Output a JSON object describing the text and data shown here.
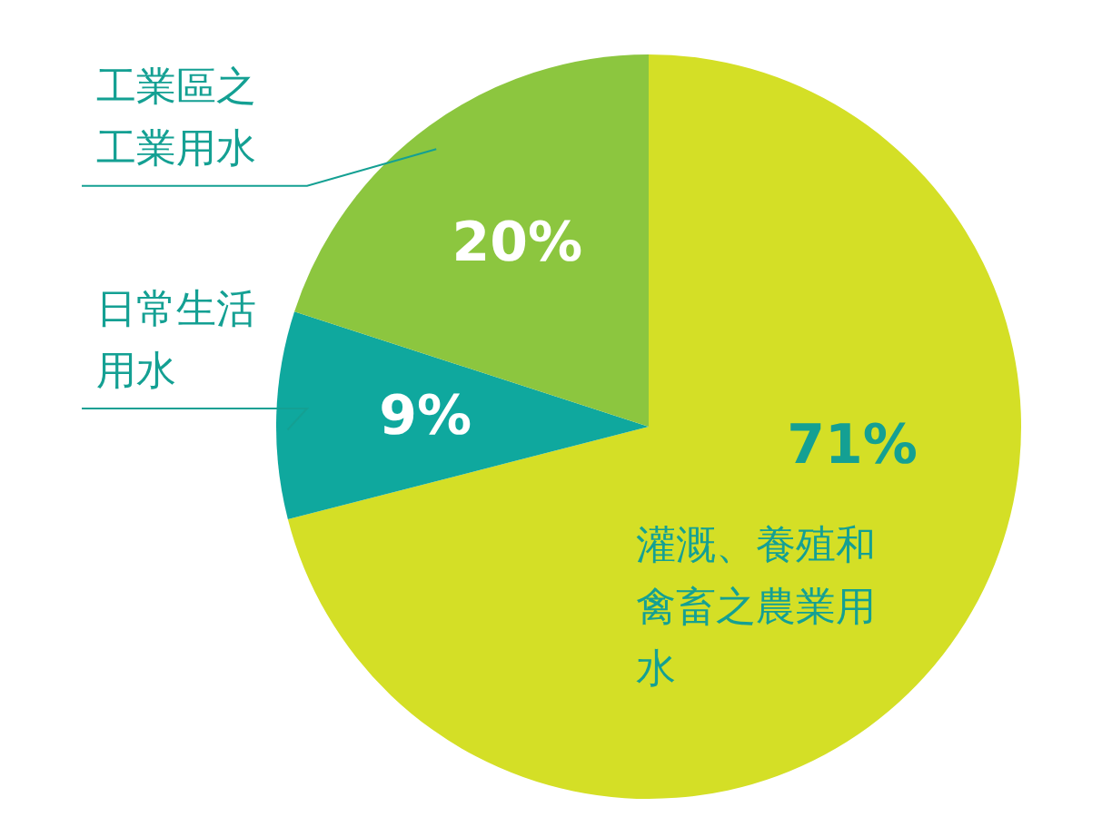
{
  "chart_data": {
    "type": "pie",
    "categories": [
      "灌溉、養殖和禽畜之農業用水",
      "日常生活用水",
      "工業區之工業用水"
    ],
    "values": [
      71,
      9,
      20
    ],
    "colors": [
      "#d4df26",
      "#0fa89e",
      "#8cc63f"
    ],
    "value_labels": [
      "71%",
      "9%",
      "20%"
    ],
    "legend": false
  }
}
